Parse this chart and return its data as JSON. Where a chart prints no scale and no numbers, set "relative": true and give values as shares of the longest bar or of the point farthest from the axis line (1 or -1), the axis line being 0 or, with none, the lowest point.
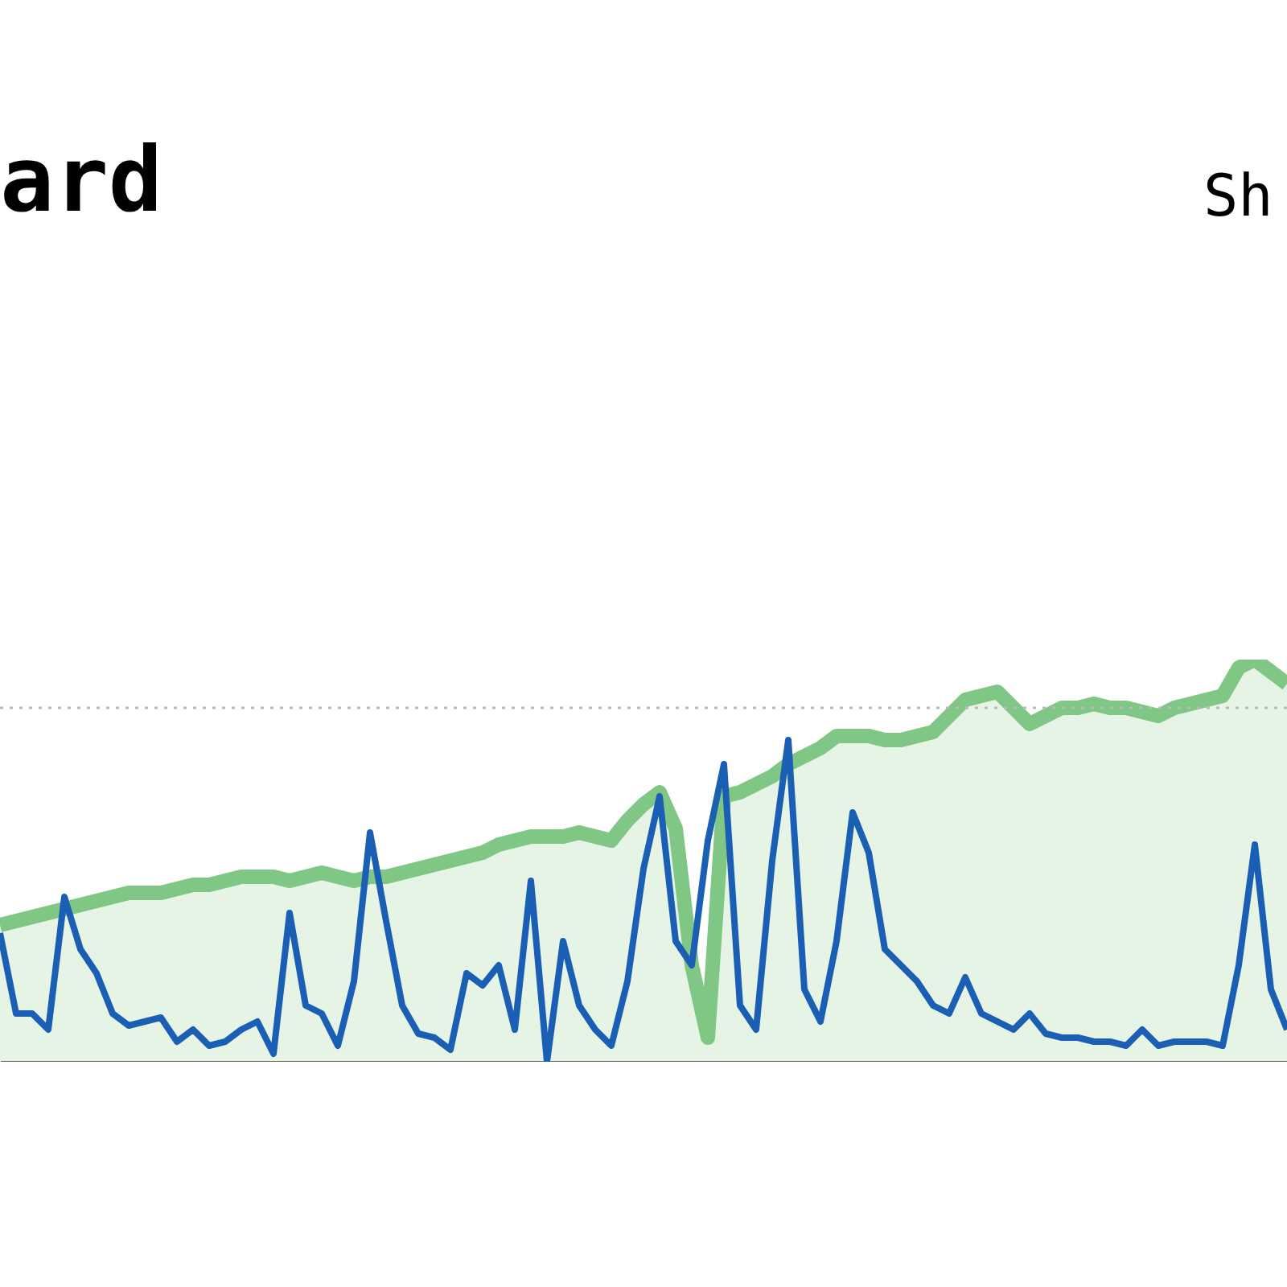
{
  "chart_data": {
    "type": "line",
    "title": "ard",
    "annotations": [
      "Sh"
    ],
    "relative": true,
    "categories": [
      null,
      null,
      null,
      null,
      null,
      null,
      null,
      null,
      null,
      null,
      null,
      null,
      null,
      null,
      null,
      null,
      null,
      null,
      null,
      null,
      null,
      null,
      null,
      null,
      null,
      null,
      null,
      null,
      null,
      null,
      null,
      null,
      null,
      null,
      null,
      null,
      null,
      null,
      null,
      null,
      null,
      null,
      null,
      null,
      null,
      null,
      null,
      null,
      null,
      null,
      null,
      null,
      null,
      null,
      null,
      null,
      null,
      null,
      null,
      null,
      null,
      null,
      null,
      null,
      null,
      null,
      null,
      null,
      null,
      null,
      null,
      null,
      null,
      null,
      null,
      null,
      null,
      null,
      null,
      null,
      null
    ],
    "series": [
      {
        "type": "area",
        "color": "#80c684",
        "values": [
          0.34,
          0.35,
          0.36,
          0.37,
          0.38,
          0.39,
          0.4,
          0.41,
          0.42,
          0.42,
          0.42,
          0.43,
          0.44,
          0.44,
          0.45,
          0.46,
          0.46,
          0.46,
          0.45,
          0.46,
          0.47,
          0.46,
          0.45,
          0.46,
          0.46,
          0.47,
          0.48,
          0.49,
          0.5,
          0.51,
          0.52,
          0.54,
          0.55,
          0.56,
          0.56,
          0.56,
          0.57,
          0.56,
          0.55,
          0.6,
          0.64,
          0.67,
          0.58,
          0.24,
          0.06,
          0.66,
          0.67,
          0.69,
          0.71,
          0.74,
          0.76,
          0.78,
          0.81,
          0.81,
          0.81,
          0.8,
          0.8,
          0.81,
          0.82,
          0.86,
          0.9,
          0.91,
          0.92,
          0.88,
          0.84,
          0.86,
          0.88,
          0.88,
          0.89,
          0.88,
          0.88,
          0.87,
          0.86,
          0.88,
          0.89,
          0.9,
          0.91,
          0.98,
          1.0,
          0.97,
          0.94
        ]
      },
      {
        "color": "#1a5fb4",
        "values": [
          0.32,
          0.12,
          0.12,
          0.08,
          0.41,
          0.28,
          0.22,
          0.12,
          0.09,
          0.1,
          0.11,
          0.05,
          0.08,
          0.04,
          0.05,
          0.08,
          0.1,
          0.02,
          0.37,
          0.14,
          0.12,
          0.04,
          0.2,
          0.57,
          0.35,
          0.14,
          0.07,
          0.06,
          0.03,
          0.22,
          0.19,
          0.24,
          0.08,
          0.45,
          0,
          0.3,
          0.14,
          0.08,
          0.04,
          0.2,
          0.48,
          0.66,
          0.3,
          0.24,
          0.55,
          0.74,
          0.14,
          0.08,
          0.5,
          0.8,
          0.18,
          0.1,
          0.3,
          0.62,
          0.52,
          0.28,
          0.24,
          0.2,
          0.14,
          0.12,
          0.21,
          0.12,
          0.1,
          0.08,
          0.12,
          0.07,
          0.06,
          0.06,
          0.05,
          0.05,
          0.04,
          0.08,
          0.04,
          0.05,
          0.05,
          0.05,
          0.04,
          0.24,
          0.54,
          0.18,
          0.08
        ]
      }
    ],
    "ref_lines": [
      {
        "axis": "y",
        "value": 0.88,
        "color": "#bbbbbb",
        "line_style": "dotted"
      }
    ]
  }
}
